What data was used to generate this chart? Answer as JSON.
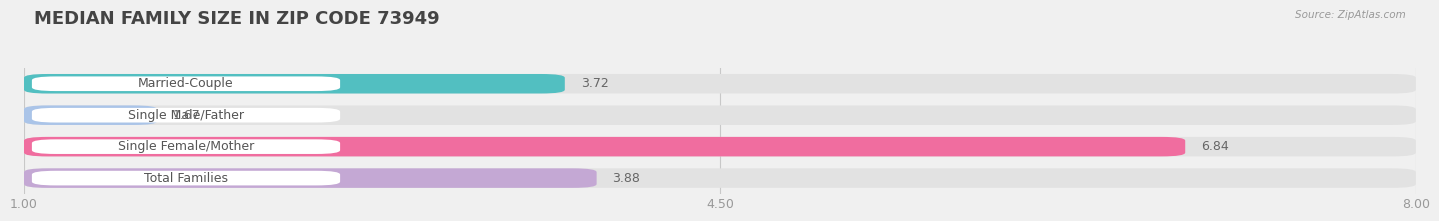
{
  "title": "MEDIAN FAMILY SIZE IN ZIP CODE 73949",
  "source": "Source: ZipAtlas.com",
  "categories": [
    "Married-Couple",
    "Single Male/Father",
    "Single Female/Mother",
    "Total Families"
  ],
  "values": [
    3.72,
    1.67,
    6.84,
    3.88
  ],
  "bar_colors": [
    "#52bfc1",
    "#aac4e8",
    "#f06d9f",
    "#c4a8d4"
  ],
  "label_bg_color": "#ffffff",
  "xlim_min": 1.0,
  "xlim_max": 8.0,
  "xticks": [
    1.0,
    4.5,
    8.0
  ],
  "xtick_labels": [
    "1.00",
    "4.50",
    "8.00"
  ],
  "background_color": "#f0f0f0",
  "bar_bg_color": "#e2e2e2",
  "title_fontsize": 13,
  "label_fontsize": 9,
  "value_fontsize": 9,
  "bar_height": 0.62,
  "value_color_inside": "#ffffff",
  "value_color_outside": "#666666",
  "label_text_color": "#555555",
  "grid_color": "#c8c8c8",
  "tick_color": "#999999",
  "title_color": "#444444"
}
